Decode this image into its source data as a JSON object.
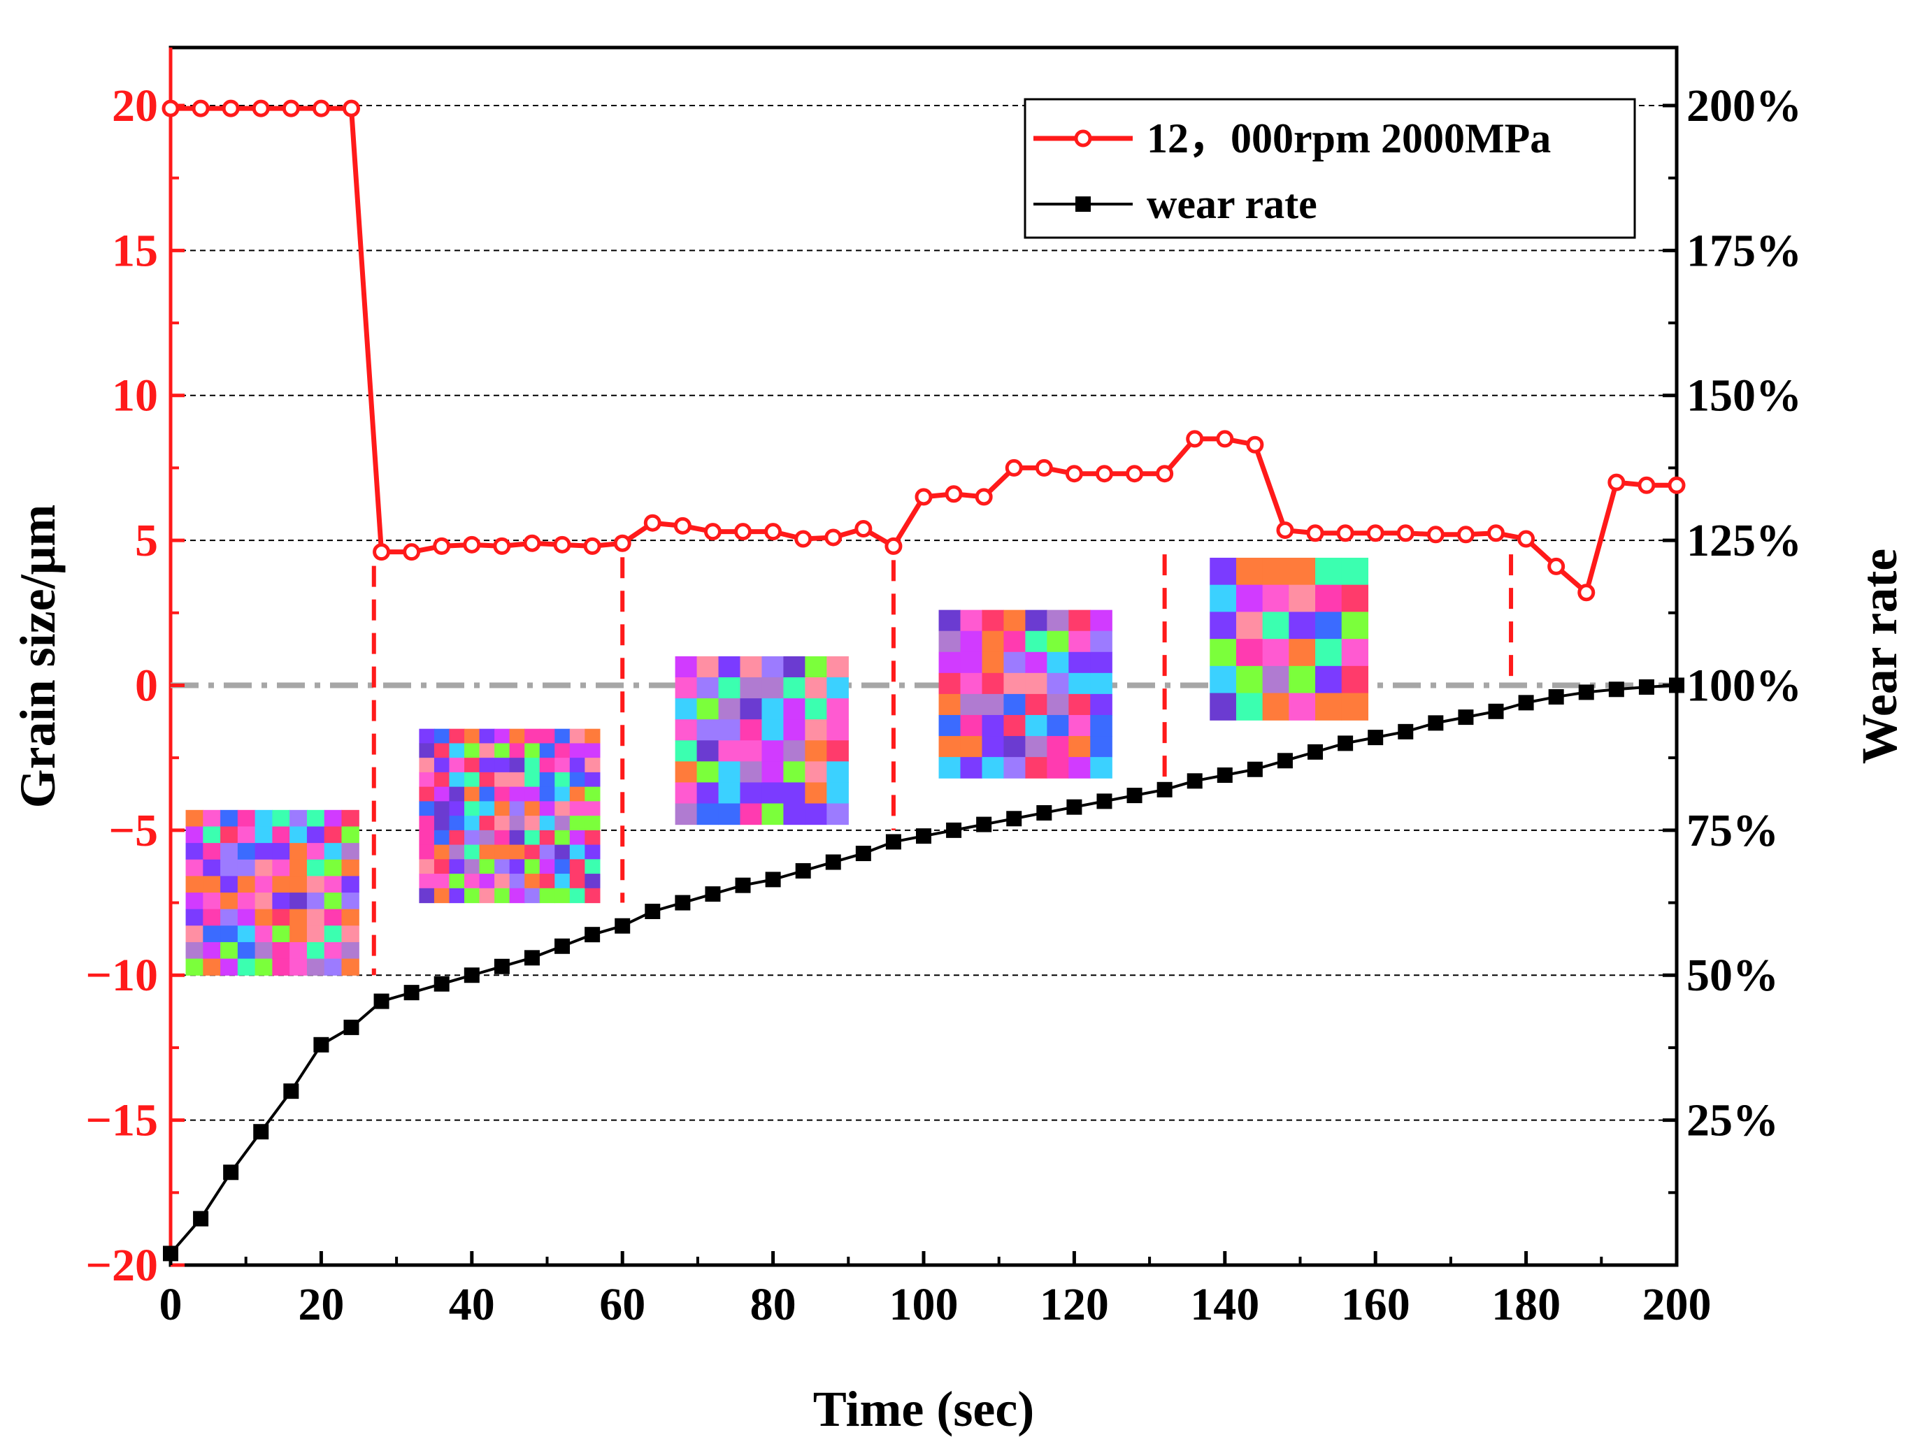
{
  "colors": {
    "grain_series": "#ff1a1a",
    "wear_series": "#000000",
    "left_axis": "#ff1a1a",
    "reference_line": "#a6a6a6",
    "grid": "#000000"
  },
  "chart_data": {
    "type": "line",
    "xlabel": "Time (sec)",
    "ylabel_left": "Grain size/μm",
    "ylabel_right": "Wear rate",
    "xlim": [
      0,
      200
    ],
    "ylim_left": [
      -20,
      22
    ],
    "ylim_right": [
      0,
      210
    ],
    "x_ticks": [
      "0",
      "20",
      "40",
      "60",
      "80",
      "100",
      "120",
      "140",
      "160",
      "180",
      "200"
    ],
    "y_ticks_left": [
      {
        "value": 20,
        "label": "20"
      },
      {
        "value": 15,
        "label": "15"
      },
      {
        "value": 10,
        "label": "10"
      },
      {
        "value": 5,
        "label": "5"
      },
      {
        "value": 0,
        "label": "0"
      },
      {
        "value": -5,
        "label": "−5"
      },
      {
        "value": -10,
        "label": "−10"
      },
      {
        "value": -15,
        "label": "−15"
      },
      {
        "value": -20,
        "label": "−20"
      }
    ],
    "y_ticks_right": [
      {
        "value": 200,
        "label": "200%"
      },
      {
        "value": 175,
        "label": "175%"
      },
      {
        "value": 150,
        "label": "150%"
      },
      {
        "value": 125,
        "label": "125%"
      },
      {
        "value": 100,
        "label": "100%"
      },
      {
        "value": 75,
        "label": "75%"
      },
      {
        "value": 50,
        "label": "50%"
      },
      {
        "value": 25,
        "label": "25%"
      }
    ],
    "grid": "horizontal dashed",
    "reference_line": {
      "axis": "left",
      "value": 0
    },
    "phase_boundaries": [
      27,
      60,
      96,
      132,
      178
    ],
    "legend": {
      "placement": "top-right",
      "entries": [
        "12，000rpm 2000MPa",
        "wear rate"
      ]
    },
    "series": [
      {
        "name": "12，000rpm 2000MPa",
        "axis": "left",
        "marker": "circle",
        "x": [
          0,
          4,
          8,
          12,
          16,
          20,
          24,
          28,
          32,
          36,
          40,
          44,
          48,
          52,
          56,
          60,
          64,
          68,
          72,
          76,
          80,
          84,
          88,
          92,
          96,
          100,
          104,
          108,
          112,
          116,
          120,
          124,
          128,
          132,
          136,
          140,
          144,
          148,
          152,
          156,
          160,
          164,
          168,
          172,
          176,
          180,
          184,
          188,
          192,
          196,
          200
        ],
        "values": [
          19.9,
          19.9,
          19.9,
          19.9,
          19.9,
          19.9,
          19.9,
          4.6,
          4.6,
          4.8,
          4.85,
          4.8,
          4.9,
          4.85,
          4.8,
          4.9,
          5.6,
          5.5,
          5.3,
          5.3,
          5.3,
          5.05,
          5.1,
          5.4,
          4.8,
          6.5,
          6.6,
          6.5,
          7.5,
          7.5,
          7.3,
          7.3,
          7.3,
          7.3,
          8.5,
          8.5,
          8.3,
          5.35,
          5.25,
          5.25,
          5.25,
          5.25,
          5.2,
          5.2,
          5.25,
          5.05,
          4.1,
          3.2,
          7.0,
          6.9,
          6.9
        ]
      },
      {
        "name": "wear rate",
        "axis": "right",
        "marker": "square",
        "x": [
          0,
          4,
          8,
          12,
          16,
          20,
          24,
          28,
          32,
          36,
          40,
          44,
          48,
          52,
          56,
          60,
          64,
          68,
          72,
          76,
          80,
          84,
          88,
          92,
          96,
          100,
          104,
          108,
          112,
          116,
          120,
          124,
          128,
          132,
          136,
          140,
          144,
          148,
          152,
          156,
          160,
          164,
          168,
          172,
          176,
          180,
          184,
          188,
          192,
          196,
          200
        ],
        "values": [
          2,
          8,
          16,
          23,
          30,
          38,
          41,
          45.5,
          47,
          48.5,
          50,
          51.5,
          53,
          55,
          57,
          58.5,
          61,
          62.5,
          64,
          65.5,
          66.5,
          68,
          69.5,
          71,
          73,
          74,
          75,
          76,
          77,
          78,
          79,
          80,
          81,
          82,
          83.5,
          84.5,
          85.5,
          87,
          88.5,
          90,
          91,
          92,
          93.5,
          94.5,
          95.5,
          97,
          98,
          98.8,
          99.3,
          99.7,
          100
        ]
      }
    ]
  }
}
